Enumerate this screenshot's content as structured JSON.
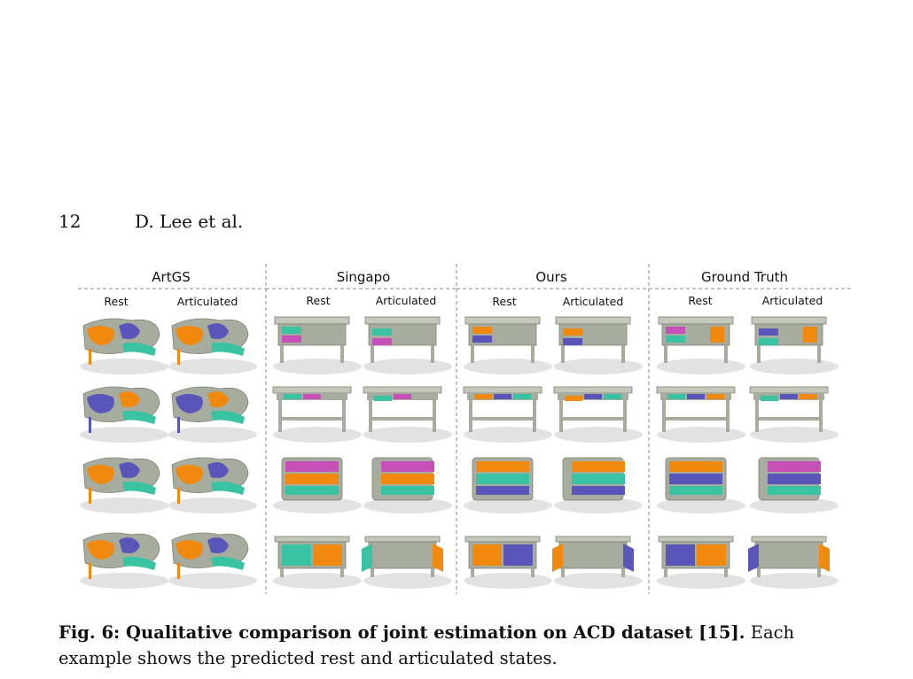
{
  "header": {
    "page_number": "12",
    "authors": "D. Lee et al."
  },
  "figure": {
    "methods": [
      {
        "name": "ArtGS",
        "states": [
          "Rest",
          "Articulated"
        ]
      },
      {
        "name": "Singapo",
        "states": [
          "Rest",
          "Articulated"
        ]
      },
      {
        "name": "Ours",
        "states": [
          "Rest",
          "Articulated"
        ]
      },
      {
        "name": "Ground Truth",
        "states": [
          "Rest",
          "Articulated"
        ]
      }
    ],
    "colors": {
      "body": "#a7ad9e",
      "orange": "#f0890e",
      "purple": "#5a55b8",
      "teal": "#39c3a3",
      "magenta": "#c74fb8",
      "shadow": "#e2e2e2",
      "divider": "#888888"
    }
  },
  "caption": {
    "label": "Fig. 6: Qualitative comparison of joint estimation on ACD dataset [15].",
    "text": "Each example shows the predicted rest and articulated states."
  }
}
